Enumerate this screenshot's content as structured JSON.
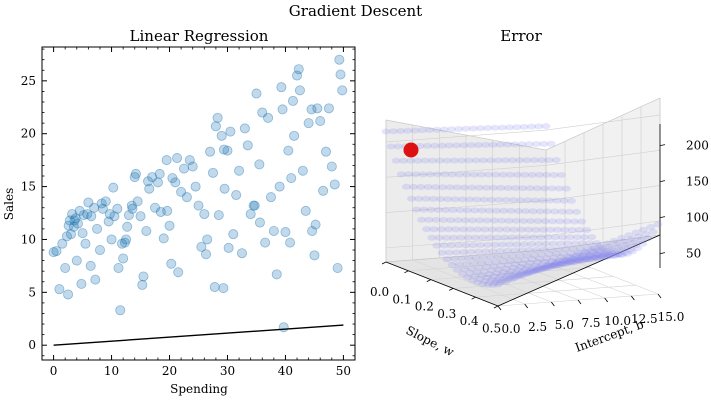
{
  "suptitle": "Gradient Descent",
  "chart_data": [
    {
      "type": "scatter",
      "title": "Linear Regression",
      "xlabel": "Spending",
      "ylabel": "Sales",
      "xlim": [
        -2,
        52
      ],
      "ylim": [
        -1.4,
        28.2
      ],
      "xticks": [
        0,
        10,
        20,
        30,
        40,
        50
      ],
      "yticks": [
        0,
        5,
        10,
        15,
        20,
        25
      ],
      "points": [
        [
          0.0,
          8.8
        ],
        [
          0.5,
          8.9
        ],
        [
          1.0,
          5.3
        ],
        [
          1.5,
          9.6
        ],
        [
          2.0,
          7.3
        ],
        [
          2.3,
          10.3
        ],
        [
          2.5,
          4.8
        ],
        [
          2.8,
          11.8
        ],
        [
          3.0,
          10.5
        ],
        [
          3.2,
          12.4
        ],
        [
          3.5,
          11.2
        ],
        [
          3.8,
          12.0
        ],
        [
          4.0,
          8.0
        ],
        [
          4.2,
          11.5
        ],
        [
          4.5,
          12.7
        ],
        [
          4.8,
          5.8
        ],
        [
          5.0,
          10.6
        ],
        [
          5.2,
          12.3
        ],
        [
          5.5,
          9.6
        ],
        [
          5.8,
          12.4
        ],
        [
          6.0,
          13.5
        ],
        [
          6.5,
          12.2
        ],
        [
          7.0,
          13.0
        ],
        [
          7.5,
          11.0
        ],
        [
          8.0,
          9.0
        ],
        [
          8.3,
          13.4
        ],
        [
          8.5,
          12.9
        ],
        [
          9.0,
          13.6
        ],
        [
          9.5,
          11.7
        ],
        [
          10.0,
          10.0
        ],
        [
          10.3,
          14.9
        ],
        [
          10.5,
          12.2
        ],
        [
          11.0,
          12.9
        ],
        [
          11.2,
          7.3
        ],
        [
          11.5,
          3.3
        ],
        [
          12.0,
          8.2
        ],
        [
          12.3,
          9.7
        ],
        [
          12.5,
          10.0
        ],
        [
          13.0,
          12.3
        ],
        [
          13.5,
          13.2
        ],
        [
          14.0,
          15.9
        ],
        [
          14.2,
          16.2
        ],
        [
          14.5,
          13.6
        ],
        [
          15.0,
          12.2
        ],
        [
          15.3,
          5.7
        ],
        [
          15.5,
          6.5
        ],
        [
          16.0,
          10.8
        ],
        [
          16.3,
          15.5
        ],
        [
          16.5,
          14.8
        ],
        [
          17.0,
          15.9
        ],
        [
          17.5,
          13.0
        ],
        [
          18.0,
          15.4
        ],
        [
          18.3,
          16.2
        ],
        [
          18.5,
          12.6
        ],
        [
          19.0,
          10.1
        ],
        [
          19.5,
          17.5
        ],
        [
          20.0,
          11.3
        ],
        [
          20.3,
          7.7
        ],
        [
          20.5,
          15.8
        ],
        [
          21.0,
          15.4
        ],
        [
          21.3,
          17.7
        ],
        [
          21.5,
          6.9
        ],
        [
          22.0,
          14.5
        ],
        [
          22.5,
          16.7
        ],
        [
          23.0,
          14.0
        ],
        [
          23.5,
          17.5
        ],
        [
          24.0,
          16.9
        ],
        [
          24.5,
          15.0
        ],
        [
          25.0,
          13.2
        ],
        [
          25.5,
          9.3
        ],
        [
          26.0,
          12.4
        ],
        [
          26.3,
          8.6
        ],
        [
          26.5,
          10.0
        ],
        [
          27.0,
          18.3
        ],
        [
          27.5,
          16.3
        ],
        [
          27.8,
          5.5
        ],
        [
          28.0,
          20.7
        ],
        [
          28.3,
          21.5
        ],
        [
          28.5,
          12.3
        ],
        [
          29.0,
          19.8
        ],
        [
          29.3,
          5.4
        ],
        [
          29.5,
          14.8
        ],
        [
          30.0,
          18.4
        ],
        [
          30.5,
          20.2
        ],
        [
          31.0,
          10.5
        ],
        [
          31.5,
          14.2
        ],
        [
          32.0,
          16.5
        ],
        [
          32.5,
          8.7
        ],
        [
          33.0,
          20.5
        ],
        [
          33.5,
          18.9
        ],
        [
          34.0,
          12.4
        ],
        [
          34.5,
          13.2
        ],
        [
          35.0,
          23.8
        ],
        [
          35.5,
          17.1
        ],
        [
          36.0,
          22.0
        ],
        [
          36.5,
          9.7
        ],
        [
          37.0,
          21.5
        ],
        [
          37.5,
          14.0
        ],
        [
          38.0,
          10.8
        ],
        [
          38.5,
          6.7
        ],
        [
          39.0,
          15.0
        ],
        [
          39.3,
          24.4
        ],
        [
          39.5,
          22.3
        ],
        [
          39.7,
          1.7
        ],
        [
          40.0,
          10.7
        ],
        [
          40.5,
          18.4
        ],
        [
          41.0,
          15.8
        ],
        [
          41.3,
          23.1
        ],
        [
          41.5,
          19.8
        ],
        [
          42.0,
          25.5
        ],
        [
          42.3,
          26.1
        ],
        [
          42.5,
          24.1
        ],
        [
          43.0,
          16.5
        ],
        [
          43.5,
          12.7
        ],
        [
          44.0,
          21.0
        ],
        [
          44.5,
          22.3
        ],
        [
          45.0,
          8.5
        ],
        [
          45.5,
          22.4
        ],
        [
          46.0,
          21.2
        ],
        [
          46.5,
          14.6
        ],
        [
          47.0,
          18.3
        ],
        [
          47.5,
          22.4
        ],
        [
          48.0,
          16.9
        ],
        [
          48.5,
          15.2
        ],
        [
          49.0,
          7.3
        ],
        [
          49.3,
          27.0
        ],
        [
          49.5,
          25.6
        ],
        [
          49.8,
          24.1
        ],
        [
          40.8,
          9.7
        ],
        [
          34.7,
          13.2
        ],
        [
          30.2,
          9.2
        ],
        [
          11.8,
          9.6
        ],
        [
          9.7,
          12.4
        ],
        [
          13.6,
          12.9
        ],
        [
          45.2,
          11.4
        ],
        [
          35.6,
          11.6
        ],
        [
          6.4,
          7.5
        ],
        [
          29.4,
          18.5
        ],
        [
          19.6,
          12.7
        ],
        [
          2.6,
          11.3
        ],
        [
          12.7,
          11.2
        ],
        [
          44.6,
          10.8
        ],
        [
          7.2,
          6.2
        ],
        [
          3.6,
          11.8
        ]
      ],
      "fit_line": [
        [
          0,
          0.0
        ],
        [
          50,
          1.9
        ]
      ],
      "point_color": "#1f77b4",
      "line_color": "#000000"
    },
    {
      "type": "surface3d",
      "title": "Error",
      "xlabel": "Slope, w",
      "ylabel": "Intercept, b",
      "xticks": [
        "0.0",
        "0.1",
        "0.2",
        "0.3",
        "0.4",
        "0.5"
      ],
      "yticks": [
        "0.0",
        "2.5",
        "5.0",
        "7.5",
        "10.0",
        "12.5",
        "15.0"
      ],
      "zticks": [
        "50",
        "100",
        "150",
        "200"
      ],
      "surface_color": "#8888ee",
      "marker_color": "#dd1111",
      "marker": {
        "w": 0.0,
        "b": 0.0,
        "error": 210
      }
    }
  ]
}
